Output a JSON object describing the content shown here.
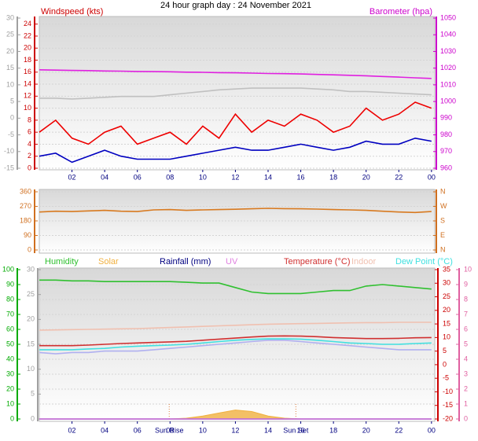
{
  "chart_data": [
    {
      "type": "line",
      "title": "24 hour graph day : 24 November 2021",
      "ylabel": "Windspeed (kts)",
      "y2label": "Barometer (hpa)",
      "x": [
        0,
        1,
        2,
        3,
        4,
        5,
        6,
        7,
        8,
        9,
        10,
        11,
        12,
        13,
        14,
        15,
        16,
        17,
        18,
        19,
        20,
        21,
        22,
        23,
        24
      ],
      "xlim": [
        0,
        24.2
      ],
      "xticks": [
        {
          "value": 2,
          "label": "02"
        },
        {
          "value": 4,
          "label": "04"
        },
        {
          "value": 6,
          "label": "06"
        },
        {
          "value": 8,
          "label": "08"
        },
        10,
        12,
        14,
        16,
        18,
        20,
        22,
        {
          "value": 24,
          "label": "00"
        }
      ],
      "ylim": [
        0,
        25
      ],
      "yticks": [
        0,
        2,
        4,
        6,
        8,
        10,
        12,
        14,
        16,
        18,
        20,
        22,
        24
      ],
      "y2lim": [
        960,
        1050
      ],
      "y2ticks": [
        960,
        970,
        980,
        990,
        1000,
        1010,
        1020,
        1030,
        1040,
        1050
      ],
      "y3lim": [
        -15,
        30
      ],
      "y3ticks": [
        -15,
        -10,
        -5,
        0,
        5,
        10,
        15,
        20,
        25,
        30
      ],
      "axis_colors": {
        "y": "#cc0000",
        "y2": "#cc00cc",
        "y3": "#a0a0a0"
      },
      "grid": true,
      "series": [
        {
          "color": "#c0c0c0",
          "axis": "y2",
          "values": [
            1002,
            1002,
            1001.5,
            1002,
            1002.5,
            1003,
            1003,
            1003,
            1004,
            1005,
            1006,
            1007,
            1007.5,
            1008,
            1008,
            1008,
            1008,
            1007.5,
            1007,
            1006,
            1006,
            1005.5,
            1005,
            1004.5,
            1004
          ]
        },
        {
          "color": "#e020e0",
          "axis": "y2",
          "values": [
            1019,
            1018.8,
            1018.6,
            1018.5,
            1018.3,
            1018.2,
            1018,
            1017.9,
            1017.8,
            1017.6,
            1017.5,
            1017.3,
            1017.2,
            1017,
            1016.8,
            1016.7,
            1016.5,
            1016.2,
            1016,
            1015.7,
            1015.4,
            1015,
            1014.6,
            1014.2,
            1013.8
          ]
        },
        {
          "color": "#ee0000",
          "values": [
            6,
            8,
            5,
            4,
            6,
            7,
            4,
            5,
            6,
            4,
            7,
            5,
            9,
            6,
            8,
            7,
            9,
            8,
            6,
            7,
            10,
            8,
            9,
            11,
            10
          ]
        },
        {
          "color": "#0000c0",
          "values": [
            2,
            2.5,
            1,
            2,
            3,
            2,
            1.5,
            1.5,
            1.5,
            2,
            2.5,
            3,
            3.5,
            3,
            3,
            3.5,
            4,
            3.5,
            3,
            3.5,
            4.5,
            4,
            4,
            5,
            4.5
          ]
        }
      ]
    },
    {
      "type": "line",
      "x": [
        0,
        1,
        2,
        3,
        4,
        5,
        6,
        7,
        8,
        9,
        10,
        11,
        12,
        13,
        14,
        15,
        16,
        17,
        18,
        19,
        20,
        21,
        22,
        23,
        24
      ],
      "xlim": [
        0,
        24.2
      ],
      "ylim": [
        0,
        360
      ],
      "yticks": [
        0,
        90,
        180,
        270,
        360
      ],
      "y2lim": [
        0,
        360
      ],
      "y2ticks": [
        {
          "value": 0,
          "label": "N"
        },
        {
          "value": 90,
          "label": "E"
        },
        {
          "value": 180,
          "label": "S"
        },
        {
          "value": 270,
          "label": "W"
        },
        {
          "value": 360,
          "label": "N"
        }
      ],
      "axis_colors": {
        "y": "#d07020",
        "y2": "#d07020"
      },
      "grid": true,
      "series": [
        {
          "color": "#d87a20",
          "values": [
            235,
            240,
            238,
            242,
            245,
            240,
            238,
            248,
            250,
            245,
            248,
            250,
            252,
            255,
            258,
            256,
            255,
            253,
            250,
            248,
            245,
            240,
            235,
            232,
            238
          ]
        }
      ]
    },
    {
      "type": "line",
      "x": [
        0,
        1,
        2,
        3,
        4,
        5,
        6,
        7,
        8,
        9,
        10,
        11,
        12,
        13,
        14,
        15,
        16,
        17,
        18,
        19,
        20,
        21,
        22,
        23,
        24
      ],
      "xlim": [
        0,
        24.2
      ],
      "xticks": [
        {
          "value": 2,
          "label": "02"
        },
        {
          "value": 4,
          "label": "04"
        },
        {
          "value": 6,
          "label": "06"
        },
        {
          "value": 8,
          "label": "08"
        },
        10,
        12,
        14,
        16,
        18,
        20,
        22,
        {
          "value": 24,
          "label": "00"
        }
      ],
      "ylim": [
        0,
        100
      ],
      "yticks": [
        0,
        10,
        20,
        30,
        40,
        50,
        60,
        70,
        80,
        90,
        100
      ],
      "y2lim": [
        -20,
        35
      ],
      "y2ticks": [
        -20,
        -15,
        -10,
        -5,
        0,
        5,
        10,
        15,
        20,
        25,
        30,
        35
      ],
      "y3lim": [
        0,
        30
      ],
      "y3ticks": [
        0,
        5,
        10,
        15,
        20,
        25,
        30
      ],
      "y4lim": [
        0,
        10
      ],
      "y4ticks": [
        0,
        1,
        2,
        3,
        4,
        5,
        6,
        7,
        8,
        9,
        10
      ],
      "axis_colors": {
        "y": "#00aa00",
        "y2": "#cc0000",
        "y3": "#a0a0a0",
        "y4": "#e060a0"
      },
      "grid": true,
      "annotations": [
        {
          "x": 7.95,
          "label": "Sun Rise"
        },
        {
          "x": 15.7,
          "label": "Sun Set"
        }
      ],
      "series": [
        {
          "name": "Humidity",
          "color": "#30c030",
          "values": [
            93,
            93,
            92.5,
            92.5,
            92,
            92,
            92,
            92,
            92,
            91.5,
            91,
            91,
            88,
            85,
            84,
            84,
            84,
            85,
            86,
            86,
            89,
            90,
            89,
            88,
            87
          ]
        },
        {
          "name": "Solar",
          "color": "#f0b040",
          "style": "area",
          "values": [
            0,
            0,
            0,
            0,
            0,
            0,
            0,
            0,
            0,
            0.5,
            2,
            4,
            6,
            5,
            2,
            0.5,
            0,
            0,
            0,
            0,
            0,
            0,
            0,
            0,
            0
          ]
        },
        {
          "name": "Rainfall (mm)",
          "color": "#000080",
          "axis": "y3",
          "values": [
            0,
            0,
            0,
            0,
            0,
            0,
            0,
            0,
            0,
            0,
            0,
            0,
            0,
            0,
            0,
            0,
            0,
            0,
            0,
            0,
            0,
            0,
            0,
            0,
            0
          ]
        },
        {
          "name": "UV",
          "color": "#e080e0",
          "axis": "y4",
          "values": [
            0,
            0,
            0,
            0,
            0,
            0,
            0,
            0,
            0,
            0,
            0,
            0,
            0,
            0,
            0,
            0,
            0,
            0,
            0,
            0,
            0,
            0,
            0,
            0,
            0
          ]
        },
        {
          "color": "#b0b0f0",
          "axis": "y2",
          "values": [
            4.5,
            4,
            4.5,
            4.5,
            5,
            5,
            5,
            5.5,
            6,
            6.5,
            7,
            7.5,
            8,
            8.5,
            9,
            9,
            8.5,
            8,
            7.5,
            7,
            6.5,
            6,
            5.5,
            5.5,
            5.5
          ]
        },
        {
          "name": "Temperature (°C)",
          "color": "#d03030",
          "axis": "y2",
          "values": [
            7,
            7,
            7,
            7.2,
            7.5,
            7.8,
            8,
            8.2,
            8.4,
            8.6,
            9,
            9.4,
            9.8,
            10.2,
            10.5,
            10.6,
            10.5,
            10.3,
            10,
            9.8,
            9.6,
            9.6,
            9.7,
            9.9,
            10
          ]
        },
        {
          "name": "Indoor",
          "color": "#f0c0b0",
          "axis": "y2",
          "values": [
            12.7,
            12.8,
            12.9,
            13,
            13.1,
            13.2,
            13.3,
            13.5,
            13.7,
            13.9,
            14.1,
            14.3,
            14.5,
            14.7,
            14.9,
            15,
            15.1,
            15.2,
            15.3,
            15.4,
            15.5,
            15.5,
            15.6,
            15.6,
            15.6
          ]
        },
        {
          "name": "Dew Point (°C)",
          "color": "#40e0e0",
          "axis": "y2",
          "values": [
            5.5,
            5.5,
            5.5,
            5.8,
            6,
            6.5,
            6.8,
            7,
            7.2,
            7.5,
            8,
            8.5,
            9,
            9.3,
            9.5,
            9.5,
            9.4,
            9,
            8.5,
            8,
            7.8,
            7.5,
            7.5,
            7.8,
            8
          ]
        }
      ]
    }
  ]
}
